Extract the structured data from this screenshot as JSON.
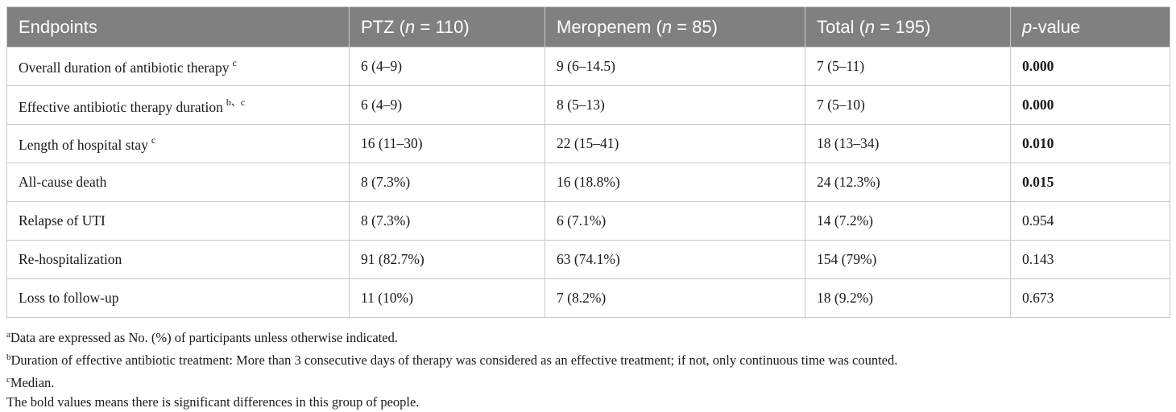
{
  "table": {
    "columns": [
      {
        "label": "Endpoints",
        "pre": "Endpoints",
        "ital": "",
        "post": ""
      },
      {
        "label": "PTZ (n = 110)",
        "pre": "PTZ (",
        "ital": "n",
        "post": " = 110)"
      },
      {
        "label": "Meropenem (n = 85)",
        "pre": "Meropenem (",
        "ital": "n",
        "post": " = 85)"
      },
      {
        "label": "Total (n = 195)",
        "pre": "Total (",
        "ital": "n",
        "post": " = 195)"
      },
      {
        "label": "p-value",
        "pre": "",
        "ital": "p",
        "post": "-value"
      }
    ],
    "rows": [
      {
        "endpoint": "Overall duration of antibiotic therapy",
        "sup": "c",
        "ptz": "6 (4–9)",
        "meropenem": "9 (6–14.5)",
        "total": "7 (5–11)",
        "p": "0.000",
        "p_bold": true
      },
      {
        "endpoint": "Effective antibiotic therapy duration",
        "sup": "b、c",
        "ptz": "6 (4–9)",
        "meropenem": "8 (5–13)",
        "total": "7 (5–10)",
        "p": "0.000",
        "p_bold": true
      },
      {
        "endpoint": "Length of hospital stay",
        "sup": "c",
        "ptz": "16 (11–30)",
        "meropenem": "22 (15–41)",
        "total": "18 (13–34)",
        "p": "0.010",
        "p_bold": true
      },
      {
        "endpoint": "All-cause death",
        "sup": "",
        "ptz": "8 (7.3%)",
        "meropenem": "16 (18.8%)",
        "total": "24 (12.3%)",
        "p": "0.015",
        "p_bold": true
      },
      {
        "endpoint": "Relapse of UTI",
        "sup": "",
        "ptz": "8 (7.3%)",
        "meropenem": "6 (7.1%)",
        "total": "14 (7.2%)",
        "p": "0.954",
        "p_bold": false
      },
      {
        "endpoint": "Re-hospitalization",
        "sup": "",
        "ptz": "91 (82.7%)",
        "meropenem": "63 (74.1%)",
        "total": "154 (79%)",
        "p": "0.143",
        "p_bold": false
      },
      {
        "endpoint": "Loss to follow-up",
        "sup": "",
        "ptz": "11 (10%)",
        "meropenem": "7 (8.2%)",
        "total": "18 (9.2%)",
        "p": "0.673",
        "p_bold": false
      }
    ]
  },
  "footnotes": [
    {
      "marker": "a",
      "text": "Data are expressed as No. (%) of participants unless otherwise indicated."
    },
    {
      "marker": "b",
      "text": "Duration of effective antibiotic treatment: More than 3 consecutive days of therapy was considered as an effective treatment; if not, only continuous time was counted."
    },
    {
      "marker": "c",
      "text": "Median."
    },
    {
      "marker": "",
      "text": "The bold values means there is significant differences in this group of people."
    }
  ],
  "colors": {
    "header_bg": "#808080",
    "header_text": "#ffffff",
    "border": "#c9c9c9"
  }
}
